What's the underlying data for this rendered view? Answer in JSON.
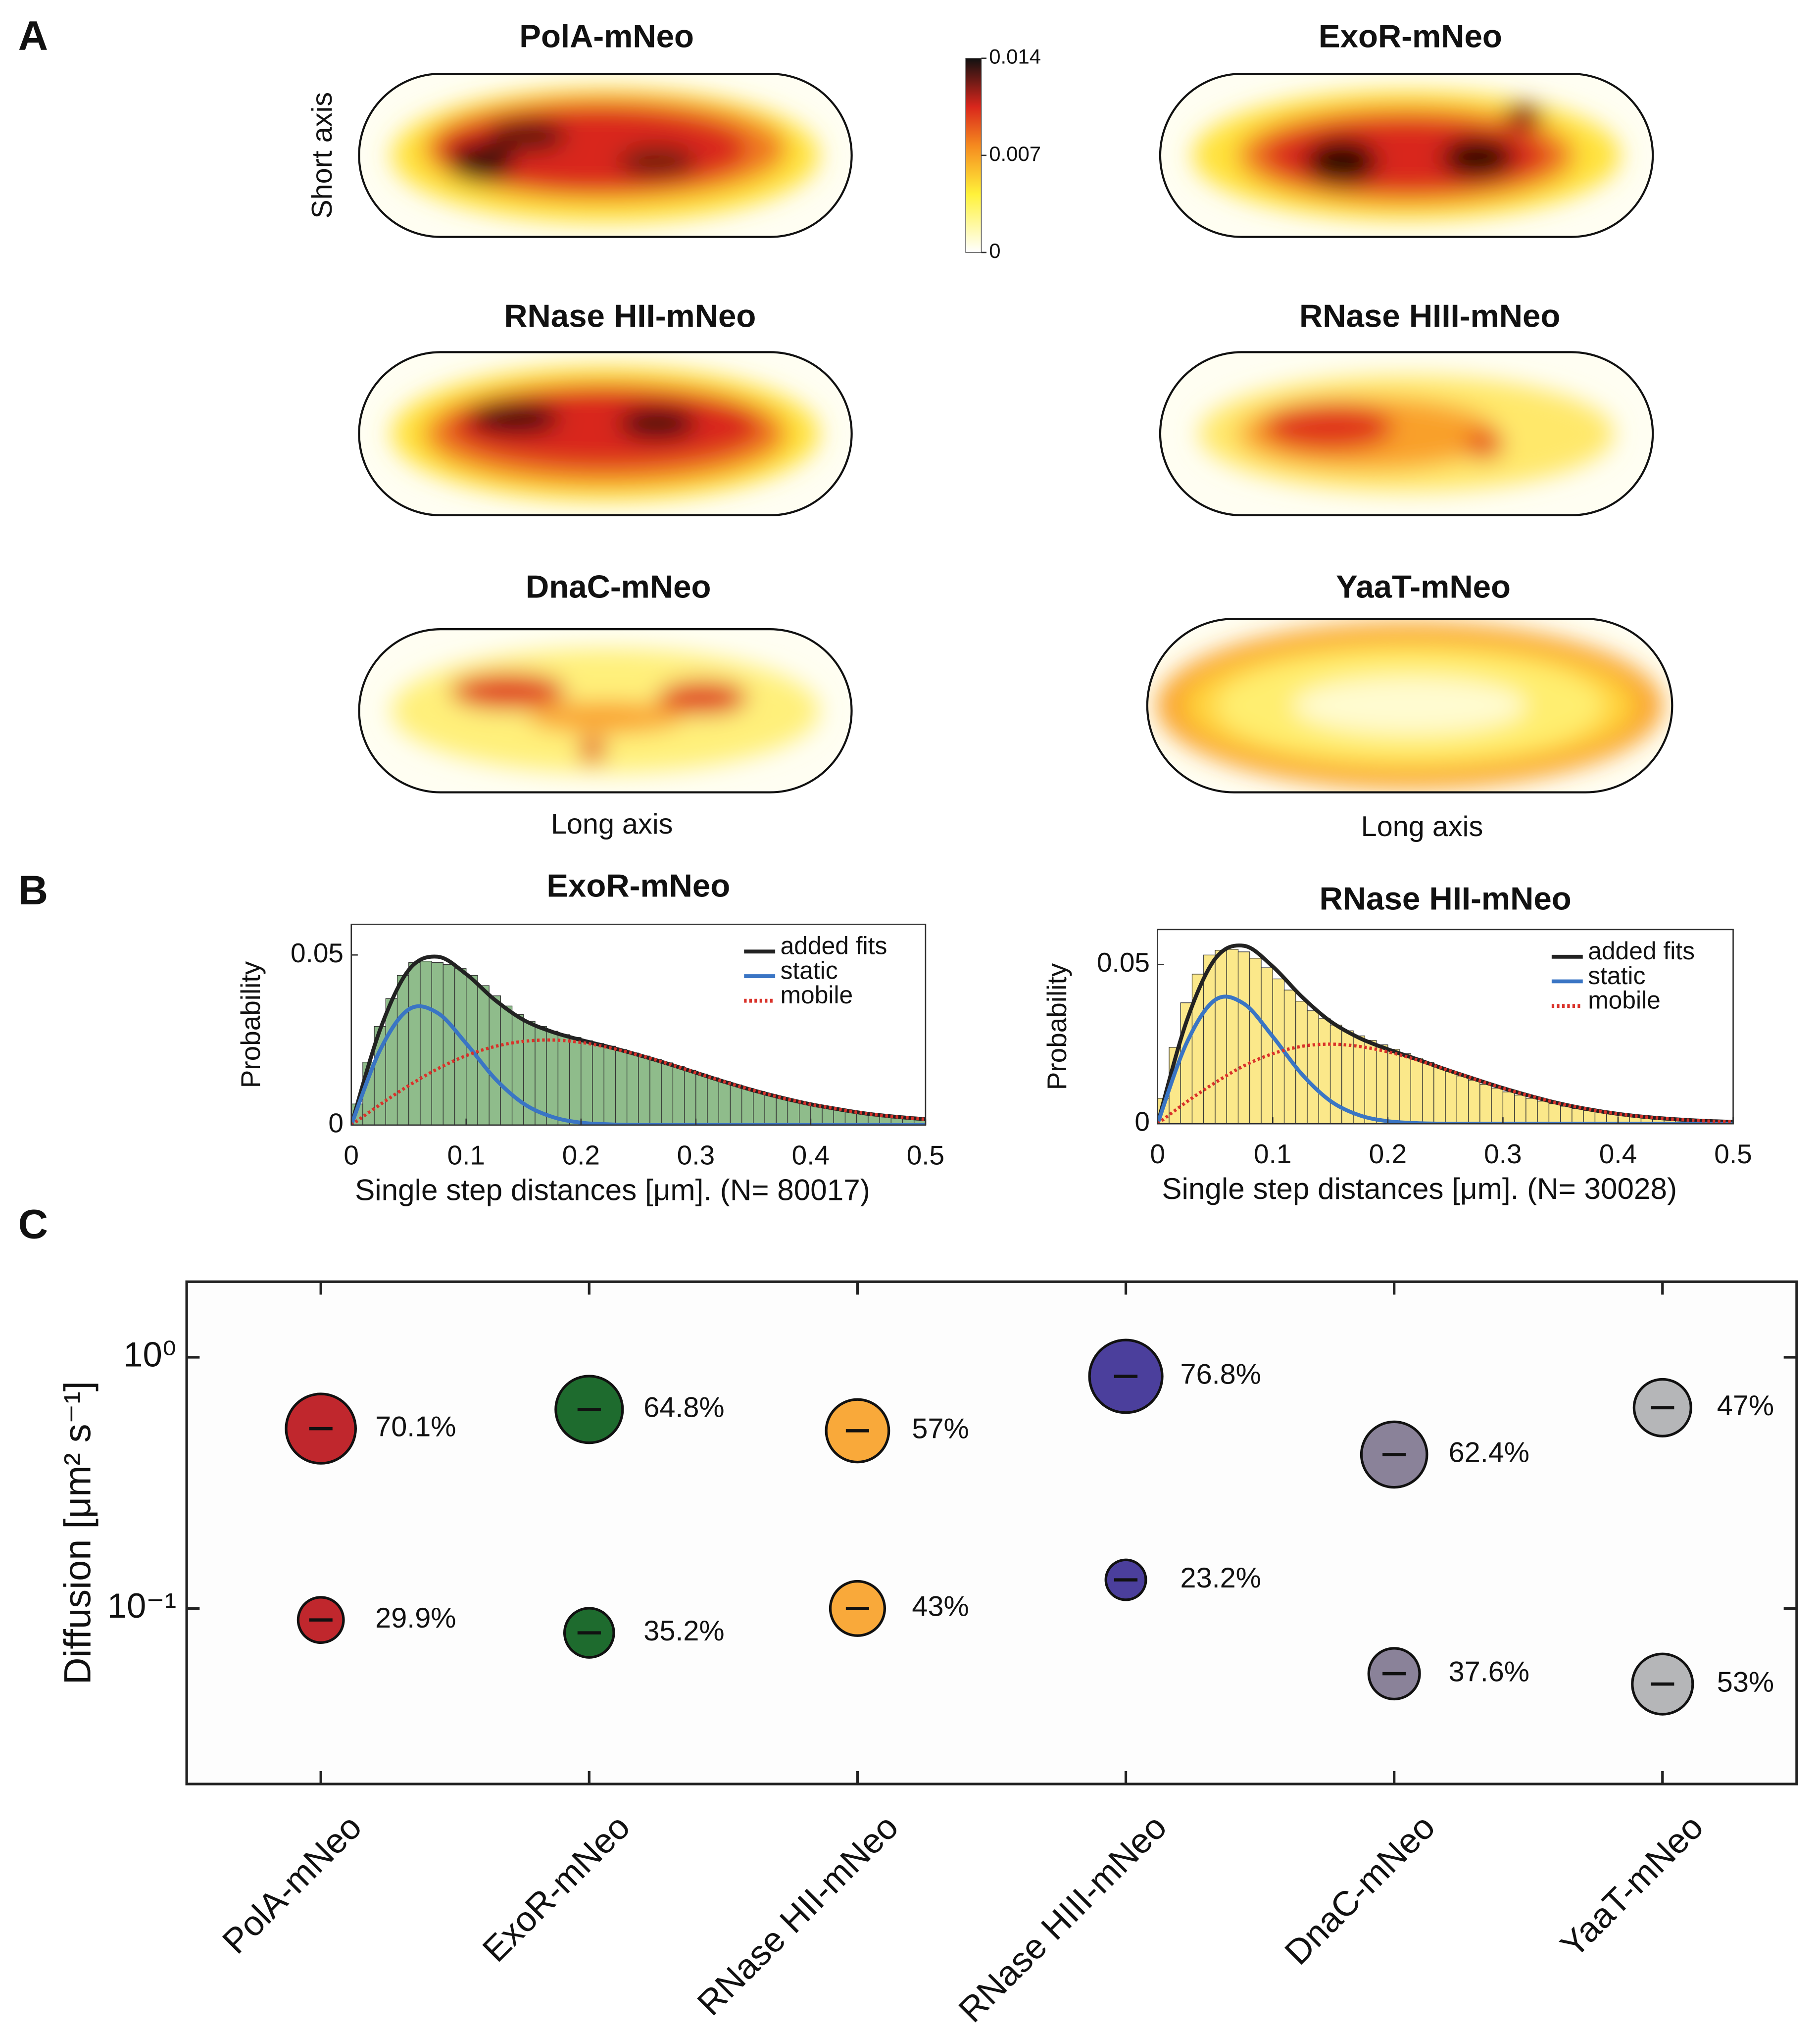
{
  "panels": [
    "A",
    "B",
    "C"
  ],
  "chart_data": [
    {
      "type": "heatmap",
      "titles": [
        "PolA-mNeo",
        "ExoR-mNeo",
        "RNase HII-mNeo",
        "RNase HIII-mNeo",
        "DnaC-mNeo",
        "YaaT-mNeo"
      ],
      "ylabel": "Short axis",
      "xlabel": "Long axis",
      "colorbar": {
        "ylim": [
          0,
          0.014
        ],
        "yticks": [
          0,
          0.007,
          0.014
        ]
      }
    },
    {
      "type": "histogram",
      "title": "ExoR-mNeo",
      "xlabel": "Single step distances [μm]. (N= 80017)",
      "ylabel": "Probability",
      "bins": [
        0,
        0.01,
        0.02,
        0.03,
        0.04,
        0.05,
        0.06,
        0.07,
        0.08,
        0.09,
        0.1,
        0.11,
        0.12,
        0.13,
        0.14,
        0.15,
        0.16,
        0.17,
        0.18,
        0.19,
        0.2,
        0.21,
        0.22,
        0.23,
        0.24,
        0.25,
        0.26,
        0.27,
        0.28,
        0.29,
        0.3,
        0.31,
        0.32,
        0.33,
        0.34,
        0.35,
        0.36,
        0.37,
        0.38,
        0.39,
        0.4,
        0.41,
        0.42,
        0.43,
        0.44,
        0.45,
        0.46,
        0.47,
        0.48,
        0.49,
        0.5
      ],
      "counts": [
        0.0062,
        0.0185,
        0.029,
        0.0372,
        0.044,
        0.0478,
        0.0482,
        0.0478,
        0.0472,
        0.046,
        0.044,
        0.041,
        0.038,
        0.035,
        0.0325,
        0.0305,
        0.029,
        0.0276,
        0.0266,
        0.0258,
        0.0248,
        0.024,
        0.0232,
        0.0222,
        0.0212,
        0.0203,
        0.0193,
        0.0183,
        0.0172,
        0.0161,
        0.015,
        0.0139,
        0.0128,
        0.0118,
        0.0108,
        0.0099,
        0.009,
        0.0081,
        0.0073,
        0.0066,
        0.0059,
        0.0053,
        0.0047,
        0.0042,
        0.0037,
        0.0033,
        0.0029,
        0.0026,
        0.0023,
        0.0021
      ],
      "color": "#8fbc8b",
      "xlim": [
        0,
        0.5
      ],
      "ylim": [
        0,
        0.059
      ],
      "xticks": [
        0,
        0.1,
        0.2,
        0.3,
        0.4,
        0.5
      ],
      "yticks": [
        0,
        0.05
      ],
      "legend": "upper right",
      "series": [
        {
          "name": "added fits",
          "color": "#222222",
          "style": "solid",
          "x": [
            0,
            0.025,
            0.05,
            0.075,
            0.1,
            0.125,
            0.15,
            0.175,
            0.2,
            0.225,
            0.25,
            0.275,
            0.3,
            0.325,
            0.35,
            0.375,
            0.4,
            0.425,
            0.45,
            0.475,
            0.5
          ],
          "values": [
            0,
            0.028,
            0.0456,
            0.0495,
            0.0444,
            0.0368,
            0.0309,
            0.0274,
            0.025,
            0.0229,
            0.0206,
            0.0181,
            0.0154,
            0.0127,
            0.0102,
            0.008,
            0.0061,
            0.0046,
            0.0033,
            0.0024,
            0.0017
          ]
        },
        {
          "name": "static",
          "color": "#3a75c4",
          "style": "solid",
          "x": [
            0,
            0.025,
            0.05,
            0.075,
            0.1,
            0.125,
            0.15,
            0.175,
            0.2,
            0.225,
            0.25,
            0.275,
            0.3,
            0.325,
            0.35,
            0.375,
            0.4,
            0.425,
            0.45,
            0.475,
            0.5
          ],
          "values": [
            0,
            0.022,
            0.034,
            0.033,
            0.024,
            0.0137,
            0.0063,
            0.0024,
            0.0007,
            0.0002,
            0,
            0,
            0,
            0,
            0,
            0,
            0,
            0,
            0,
            0,
            0
          ]
        },
        {
          "name": "mobile",
          "color": "#d9322a",
          "style": "dotted",
          "x": [
            0,
            0.025,
            0.05,
            0.075,
            0.1,
            0.125,
            0.15,
            0.175,
            0.2,
            0.225,
            0.25,
            0.275,
            0.3,
            0.325,
            0.35,
            0.375,
            0.4,
            0.425,
            0.45,
            0.475,
            0.5
          ],
          "values": [
            0,
            0.006,
            0.0116,
            0.0165,
            0.0204,
            0.0231,
            0.0246,
            0.025,
            0.0243,
            0.0227,
            0.0206,
            0.0181,
            0.0154,
            0.0127,
            0.0102,
            0.008,
            0.0061,
            0.0046,
            0.0033,
            0.0024,
            0.0017
          ]
        }
      ]
    },
    {
      "type": "histogram",
      "title": "RNase HII-mNeo",
      "xlabel": "Single step distances [μm]. (N= 30028)",
      "ylabel": "Probability",
      "bins": [
        0,
        0.01,
        0.02,
        0.03,
        0.04,
        0.05,
        0.06,
        0.07,
        0.08,
        0.09,
        0.1,
        0.11,
        0.12,
        0.13,
        0.14,
        0.15,
        0.16,
        0.17,
        0.18,
        0.19,
        0.2,
        0.21,
        0.22,
        0.23,
        0.24,
        0.25,
        0.26,
        0.27,
        0.28,
        0.29,
        0.3,
        0.31,
        0.32,
        0.33,
        0.34,
        0.35,
        0.36,
        0.37,
        0.38,
        0.39,
        0.4,
        0.41,
        0.42,
        0.43,
        0.44,
        0.45,
        0.46,
        0.47,
        0.48,
        0.49,
        0.5
      ],
      "counts": [
        0.008,
        0.024,
        0.038,
        0.047,
        0.053,
        0.0545,
        0.0548,
        0.054,
        0.052,
        0.049,
        0.0455,
        0.042,
        0.0385,
        0.0355,
        0.033,
        0.031,
        0.0292,
        0.0276,
        0.0262,
        0.0248,
        0.0234,
        0.022,
        0.0206,
        0.0192,
        0.0178,
        0.0164,
        0.015,
        0.0137,
        0.0124,
        0.0112,
        0.01,
        0.009,
        0.008,
        0.0071,
        0.0063,
        0.0055,
        0.0048,
        0.0042,
        0.0037,
        0.0032,
        0.0028,
        0.0024,
        0.0021,
        0.0018,
        0.0016,
        0.0014,
        0.0012,
        0.0011,
        0.001,
        0.0009
      ],
      "color": "#fbe88a",
      "xlim": [
        0,
        0.5
      ],
      "ylim": [
        0,
        0.061
      ],
      "xticks": [
        0,
        0.1,
        0.2,
        0.3,
        0.4,
        0.5
      ],
      "yticks": [
        0,
        0.05
      ],
      "legend": "upper right",
      "series": [
        {
          "name": "added fits",
          "color": "#222222",
          "style": "solid",
          "x": [
            0,
            0.025,
            0.05,
            0.075,
            0.1,
            0.125,
            0.15,
            0.175,
            0.2,
            0.225,
            0.25,
            0.275,
            0.3,
            0.325,
            0.35,
            0.375,
            0.4,
            0.425,
            0.45,
            0.475,
            0.5
          ],
          "values": [
            0,
            0.032,
            0.0518,
            0.0559,
            0.0494,
            0.04,
            0.0322,
            0.027,
            0.0234,
            0.0203,
            0.0171,
            0.0141,
            0.0112,
            0.0086,
            0.0063,
            0.0045,
            0.0031,
            0.0021,
            0.0014,
            0.0009,
            0.0006
          ]
        },
        {
          "name": "static",
          "color": "#3a75c4",
          "style": "solid",
          "x": [
            0,
            0.025,
            0.05,
            0.075,
            0.1,
            0.125,
            0.15,
            0.175,
            0.2,
            0.225,
            0.25,
            0.275,
            0.3,
            0.325,
            0.35,
            0.375,
            0.4,
            0.425,
            0.45,
            0.475,
            0.5
          ],
          "values": [
            0,
            0.0252,
            0.0389,
            0.0377,
            0.0274,
            0.0157,
            0.0072,
            0.0027,
            0.0008,
            0.0002,
            0,
            0,
            0,
            0,
            0,
            0,
            0,
            0,
            0,
            0,
            0
          ]
        },
        {
          "name": "mobile",
          "color": "#d9322a",
          "style": "dotted",
          "x": [
            0,
            0.025,
            0.05,
            0.075,
            0.1,
            0.125,
            0.15,
            0.175,
            0.2,
            0.225,
            0.25,
            0.275,
            0.3,
            0.325,
            0.35,
            0.375,
            0.4,
            0.425,
            0.45,
            0.475,
            0.5
          ],
          "values": [
            0,
            0.0068,
            0.0129,
            0.0182,
            0.022,
            0.0243,
            0.025,
            0.0243,
            0.0226,
            0.0201,
            0.0171,
            0.0141,
            0.0112,
            0.0086,
            0.0063,
            0.0045,
            0.0031,
            0.0021,
            0.0014,
            0.0009,
            0.0006
          ]
        }
      ]
    },
    {
      "type": "bubble",
      "ylabel": "Diffusion [μm² s⁻¹]",
      "categories": [
        "PolA-mNeo",
        "ExoR-mNeo",
        "RNase HII-mNeo",
        "RNase HIII-mNeo",
        "DnaC-mNeo",
        "YaaT-mNeo"
      ],
      "colors": [
        "#c0272d",
        "#1e6b2e",
        "#f9a93a",
        "#4b3f9c",
        "#8a8299",
        "#b5b6b8"
      ],
      "log_y": true,
      "ylim": [
        0.02,
        2
      ],
      "yticks": [
        {
          "value": 0.1,
          "label": "10⁻¹"
        },
        {
          "value": 1,
          "label": "10⁰"
        }
      ],
      "series": [
        {
          "values": [
            0.52,
            0.62,
            0.51,
            0.84,
            0.41,
            0.63
          ],
          "sizes": [
            70.1,
            64.8,
            57,
            76.8,
            62.4,
            47
          ],
          "size_labels": [
            "70.1%",
            "64.8%",
            "57%",
            "76.8%",
            "62.4%",
            "47%"
          ]
        },
        {
          "values": [
            0.09,
            0.08,
            0.1,
            0.13,
            0.055,
            0.05
          ],
          "sizes": [
            29.9,
            35.2,
            43,
            23.2,
            37.6,
            53
          ],
          "size_labels": [
            "29.9%",
            "35.2%",
            "43%",
            "23.2%",
            "37.6%",
            "53%"
          ]
        }
      ]
    }
  ]
}
